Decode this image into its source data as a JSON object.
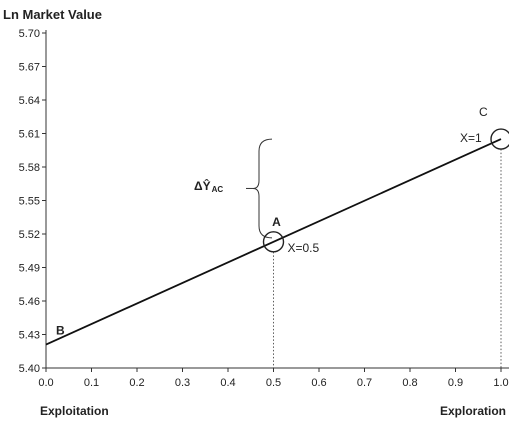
{
  "chart_data": {
    "type": "line",
    "title": "Ln Market Value",
    "xlabel_left": "Exploitation",
    "xlabel_right": "Exploration",
    "xlim": [
      0.0,
      1.0
    ],
    "ylim": [
      5.4,
      5.7
    ],
    "x_ticks": [
      "0.0",
      "0.1",
      "0.2",
      "0.3",
      "0.4",
      "0.5",
      "0.6",
      "0.7",
      "0.8",
      "0.9",
      "1.0"
    ],
    "y_ticks": [
      "5.70",
      "5.67",
      "5.64",
      "5.61",
      "5.58",
      "5.55",
      "5.52",
      "5.49",
      "5.46",
      "5.43",
      "5.40"
    ],
    "series": [
      {
        "x": [
          0.0,
          1.0
        ],
        "y": [
          5.421,
          5.605
        ]
      }
    ],
    "points": [
      {
        "label": "B",
        "x": 0.0,
        "y": 5.421,
        "text": ""
      },
      {
        "label": "A",
        "x": 0.5,
        "y": 5.513,
        "text": "X=0.5"
      },
      {
        "label": "C",
        "x": 1.0,
        "y": 5.605,
        "text": "X=1"
      }
    ],
    "annotation": {
      "main": "ΔŶ",
      "sub": "AC"
    },
    "grid": false
  }
}
